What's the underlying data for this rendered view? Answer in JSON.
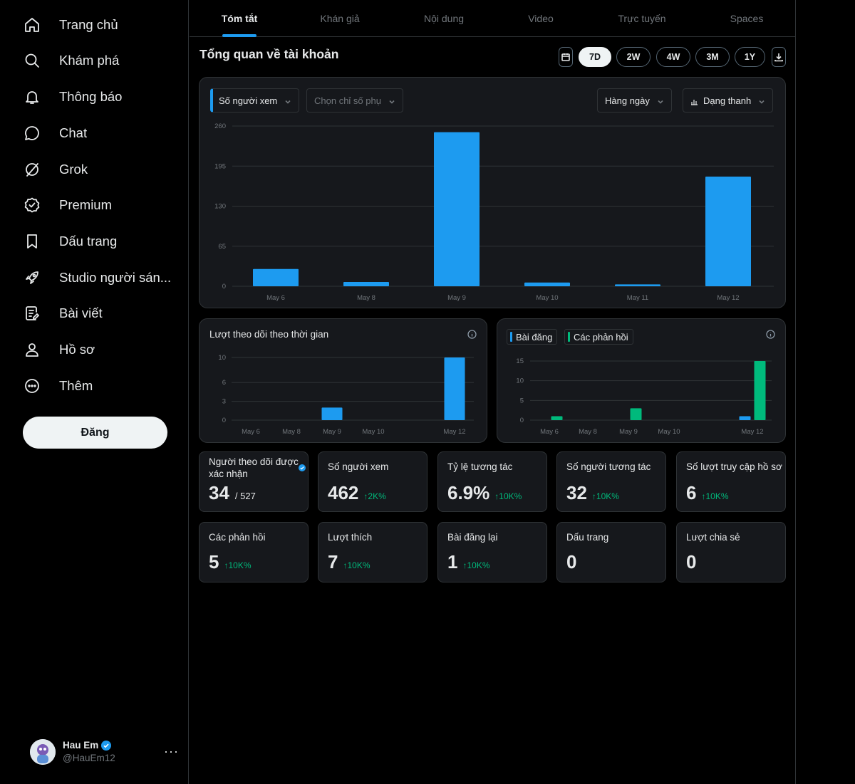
{
  "sidebar": {
    "items": [
      {
        "label": "Trang chủ",
        "icon": "home-icon"
      },
      {
        "label": "Khám phá",
        "icon": "search-icon"
      },
      {
        "label": "Thông báo",
        "icon": "bell-icon"
      },
      {
        "label": "Chat",
        "icon": "chat-icon"
      },
      {
        "label": "Grok",
        "icon": "grok-icon"
      },
      {
        "label": "Premium",
        "icon": "premium-icon"
      },
      {
        "label": "Dấu trang",
        "icon": "bookmark-icon"
      },
      {
        "label": "Studio người sán...",
        "icon": "rocket-icon"
      },
      {
        "label": "Bài viết",
        "icon": "article-icon"
      },
      {
        "label": "Hồ sơ",
        "icon": "profile-icon"
      },
      {
        "label": "Thêm",
        "icon": "more-circle-icon"
      }
    ],
    "post_label": "Đăng",
    "profile": {
      "name": "Hau Em",
      "handle": "@HauEm12",
      "more": "···"
    }
  },
  "tabs": [
    "Tóm tắt",
    "Khán giả",
    "Nội dung",
    "Video",
    "Trực tuyến",
    "Spaces"
  ],
  "page_title": "Tổng quan về tài khoản",
  "ranges": [
    "7D",
    "2W",
    "4W",
    "3M",
    "1Y"
  ],
  "selected_range": "7D",
  "main_chart": {
    "metric_select": "Số người xem",
    "secondary_select": "Chọn chỉ số phụ",
    "interval_select": "Hàng ngày",
    "type_select": "Dạng thanh"
  },
  "followers_card": {
    "title": "Lượt theo dõi theo thời gian"
  },
  "activity_card": {
    "legend": [
      "Bài đăng",
      "Các phản hồi"
    ]
  },
  "chart_data": [
    {
      "type": "bar",
      "categories": [
        "May 6",
        "May 8",
        "May 9",
        "May 10",
        "May 11",
        "May 12"
      ],
      "series": [
        {
          "name": "Số người xem",
          "values": [
            28,
            7,
            250,
            6,
            3,
            178
          ]
        }
      ],
      "yticks": [
        0,
        65,
        130,
        195,
        260
      ],
      "ylim": [
        0,
        260
      ],
      "grid": true,
      "color": "#1d9bf0"
    },
    {
      "type": "bar",
      "categories": [
        "May 6",
        "May 8",
        "May 9",
        "May 10",
        "May 12"
      ],
      "series": [
        {
          "values": [
            0,
            0,
            2,
            0,
            10
          ]
        }
      ],
      "yticks": [
        0,
        3,
        6,
        10
      ],
      "ylim": [
        0,
        10
      ],
      "grid": true,
      "color": "#1d9bf0"
    },
    {
      "type": "bar",
      "categories": [
        "May 6",
        "May 8",
        "May 9",
        "May 10",
        "May 12"
      ],
      "series": [
        {
          "name": "Bài đăng",
          "values": [
            0,
            0,
            0,
            0,
            1
          ],
          "color": "#1d9bf0"
        },
        {
          "name": "Các phản hồi",
          "values": [
            1,
            0,
            3,
            0,
            15
          ],
          "color": "#00ba7c"
        }
      ],
      "yticks": [
        0,
        5,
        10,
        15
      ],
      "ylim": [
        0,
        15
      ],
      "grid": true
    }
  ],
  "stats": [
    {
      "label": "Người theo dõi được xác nhận",
      "value": "34",
      "total": "/ 527",
      "verified": true
    },
    {
      "label": "Số người xem",
      "value": "462",
      "change": "↑2K%"
    },
    {
      "label": "Tỷ lệ tương tác",
      "value": "6.9%",
      "change": "↑10K%"
    },
    {
      "label": "Số người tương tác",
      "value": "32",
      "change": "↑10K%"
    },
    {
      "label": "Số lượt truy cập hồ sơ",
      "value": "6",
      "change": "↑10K%"
    },
    {
      "label": "Các phản hồi",
      "value": "5",
      "change": "↑10K%"
    },
    {
      "label": "Lượt thích",
      "value": "7",
      "change": "↑10K%"
    },
    {
      "label": "Bài đăng lại",
      "value": "1",
      "change": "↑10K%"
    },
    {
      "label": "Dấu trang",
      "value": "0"
    },
    {
      "label": "Lượt chia sẻ",
      "value": "0"
    }
  ],
  "colors": {
    "accent": "#1d9bf0",
    "positive": "#00ba7c",
    "card": "#16181c",
    "border": "#2f3336"
  }
}
